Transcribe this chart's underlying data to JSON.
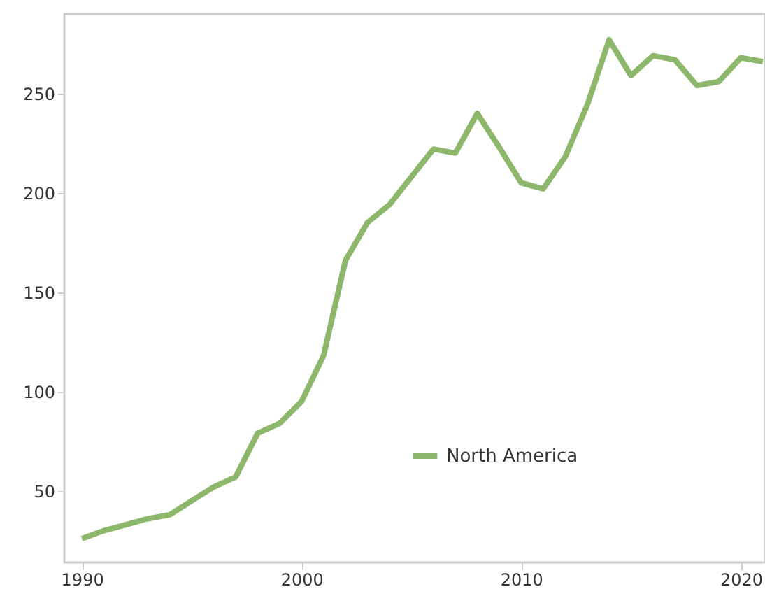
{
  "chart_data": {
    "type": "line",
    "x": [
      1990,
      1991,
      1992,
      1993,
      1994,
      1995,
      1996,
      1997,
      1998,
      1999,
      2000,
      2001,
      2002,
      2003,
      2004,
      2005,
      2006,
      2007,
      2008,
      2009,
      2010,
      2011,
      2012,
      2013,
      2014,
      2015,
      2016,
      2017,
      2018,
      2019,
      2020,
      2021
    ],
    "series": [
      {
        "name": "North America",
        "color": "#8db86b",
        "values": [
          26,
          30,
          33,
          36,
          38,
          45,
          52,
          57,
          79,
          84,
          95,
          118,
          166,
          185,
          194,
          208,
          222,
          220,
          240,
          223,
          205,
          202,
          218,
          244,
          277,
          259,
          269,
          267,
          254,
          256,
          268,
          266
        ]
      }
    ],
    "xlim": [
      1989.2,
      2021.1
    ],
    "xticks": [
      1990,
      2000,
      2010,
      2020
    ],
    "ylim": [
      14,
      290
    ],
    "yticks": [
      50,
      100,
      150,
      200,
      250
    ],
    "grid": false,
    "legend": "bottom",
    "marker": "none",
    "line_style": "solid"
  }
}
